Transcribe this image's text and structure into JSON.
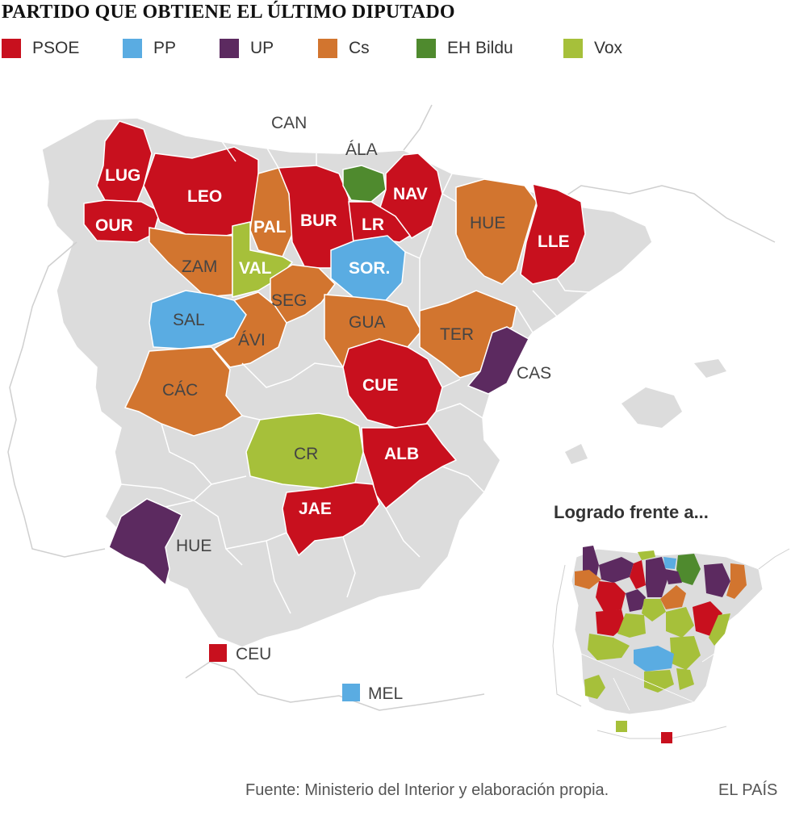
{
  "title": "PARTIDO QUE OBTIENE EL ÚLTIMO DIPUTADO",
  "legend": [
    {
      "label": "PSOE",
      "color": "#c8101e"
    },
    {
      "label": "PP",
      "color": "#5aace2"
    },
    {
      "label": "UP",
      "color": "#5c2a60"
    },
    {
      "label": "Cs",
      "color": "#d2752f"
    },
    {
      "label": "EH Bildu",
      "color": "#4f8a2e"
    },
    {
      "label": "Vox",
      "color": "#a6c03a"
    }
  ],
  "provinces": {
    "lug": {
      "label": "LUG",
      "party": "PSOE"
    },
    "our": {
      "label": "OUR",
      "party": "PSOE"
    },
    "leo": {
      "label": "LEO",
      "party": "PSOE"
    },
    "pal": {
      "label": "PAL",
      "party": "Cs"
    },
    "bur": {
      "label": "BUR",
      "party": "PSOE"
    },
    "ala": {
      "label": "ÁLA",
      "party": "EH Bildu"
    },
    "nav": {
      "label": "NAV",
      "party": "PSOE"
    },
    "lr": {
      "label": "LR",
      "party": "PSOE"
    },
    "hue_ar": {
      "label": "HUE",
      "party": "Cs"
    },
    "lle": {
      "label": "LLE",
      "party": "PSOE"
    },
    "zam": {
      "label": "ZAM",
      "party": "Cs"
    },
    "val": {
      "label": "VAL",
      "party": "Vox"
    },
    "sor": {
      "label": "SOR.",
      "party": "PP"
    },
    "seg": {
      "label": "SEG",
      "party": "Cs"
    },
    "sal": {
      "label": "SAL",
      "party": "PP"
    },
    "avi": {
      "label": "ÁVI",
      "party": "Cs"
    },
    "gua": {
      "label": "GUA",
      "party": "Cs"
    },
    "ter": {
      "label": "TER",
      "party": "Cs"
    },
    "cas": {
      "label": "CAS",
      "party": "UP"
    },
    "cue": {
      "label": "CUE",
      "party": "PSOE"
    },
    "cac": {
      "label": "CÁC",
      "party": "Cs"
    },
    "cr": {
      "label": "CR",
      "party": "Vox"
    },
    "alb": {
      "label": "ALB",
      "party": "PSOE"
    },
    "jae": {
      "label": "JAE",
      "party": "PSOE"
    },
    "hue_an": {
      "label": "HUE",
      "party": "UP"
    },
    "can": {
      "label": "CAN"
    },
    "ceu": {
      "label": "CEU",
      "party": "PSOE"
    },
    "mel": {
      "label": "MEL",
      "party": "PP"
    }
  },
  "inset": {
    "title": "Logrado frente a..."
  },
  "footer": {
    "source": "Fuente: Ministerio del Interior y elaboración propia.",
    "brand": "EL PAÍS"
  }
}
